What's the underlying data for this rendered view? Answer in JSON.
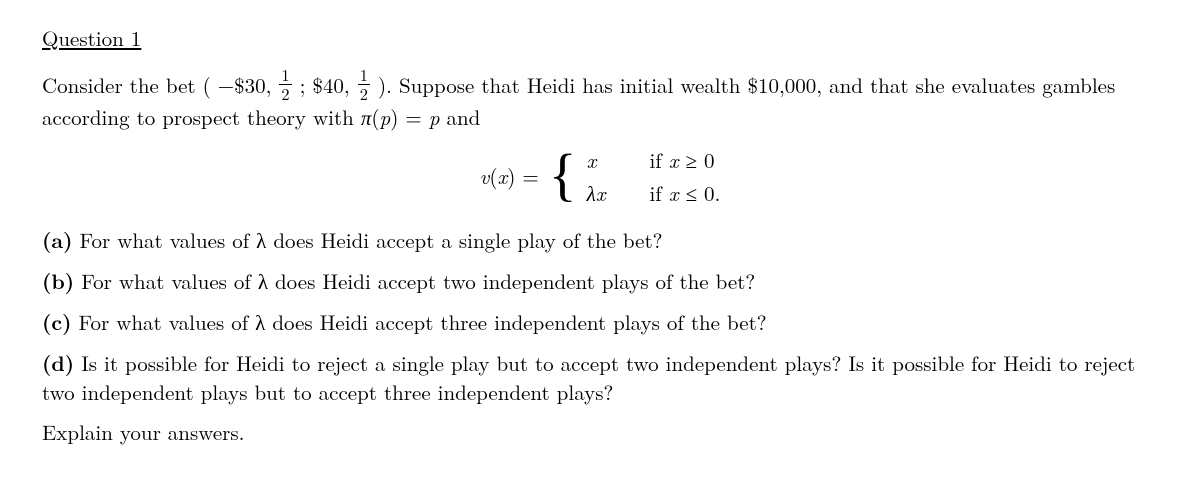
{
  "title": "Question 1",
  "intro1_pre": "Consider the bet ( −$30, ",
  "frac_num": "1",
  "frac_den": "2",
  "intro1_mid": " ; $40, ",
  "intro1_post": " ). Suppose that Heidi has initial wealth $10,000, and that she evaluates gambles according to prospect theory with ",
  "pi": "π",
  "p": "p",
  "intro1_eq": " = ",
  "intro1_and": " and",
  "vx_lhs_v": "v",
  "vx_lhs_open": "(",
  "vx_lhs_x": "x",
  "vx_lhs_close": ") = ",
  "case1_val": "x",
  "case1_cond_pre": "if ",
  "case1_cond_rel": " ≥ 0",
  "case2_val_lambda": "λ",
  "case2_val_x": "x",
  "case2_cond_pre": "if ",
  "case2_cond_rel": " ≤ 0.",
  "part_a_label": "(a)",
  "part_a_text": " For what values of λ does Heidi accept a single play of the bet?",
  "part_b_label": "(b)",
  "part_b_text": " For what values of λ does Heidi accept two independent plays of the bet?",
  "part_c_label": "(c)",
  "part_c_text": " For what values of λ does Heidi accept three independent plays of the bet?",
  "part_d_label": "(d)",
  "part_d_text": " Is it possible for Heidi to reject a single play but to accept two independent plays? Is it possible for Heidi to reject two independent plays but to accept three independent plays?",
  "explain": "Explain your answers."
}
